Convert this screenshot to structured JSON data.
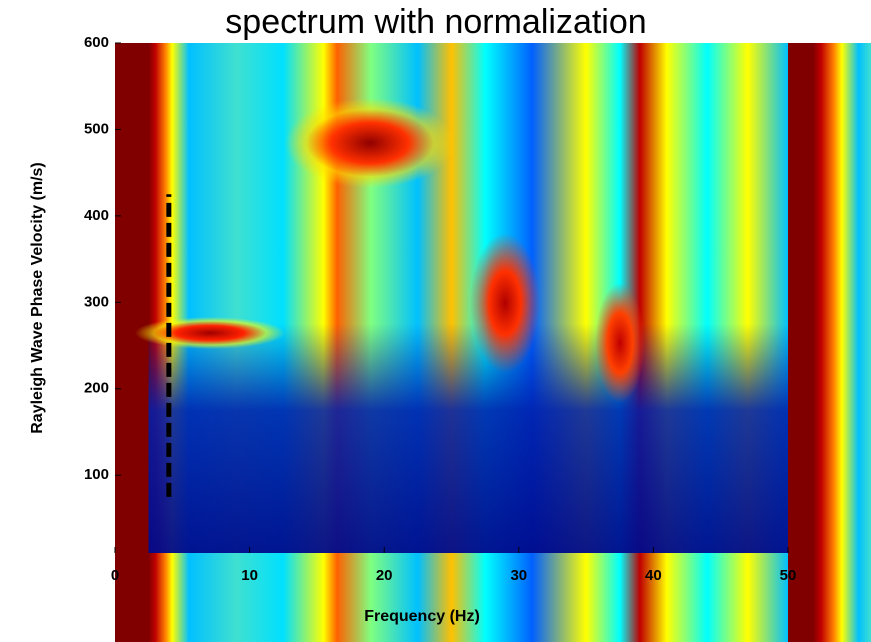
{
  "chart_data": {
    "type": "line",
    "title": "spectrum with normalization",
    "xlabel": "Frequency (Hz)",
    "ylabel": "Rayleigh Wave Phase Velocity (m/s)",
    "xlim": [
      0,
      50
    ],
    "xticks": [
      0,
      10,
      20,
      30,
      40,
      50
    ],
    "ylim": [
      10,
      600
    ],
    "yticks": [
      100,
      200,
      300,
      400,
      500,
      600
    ],
    "series": [
      {
        "color": "#000000",
        "x": [
          4,
          4
        ],
        "values": [
          75,
          425
        ]
      }
    ]
  }
}
